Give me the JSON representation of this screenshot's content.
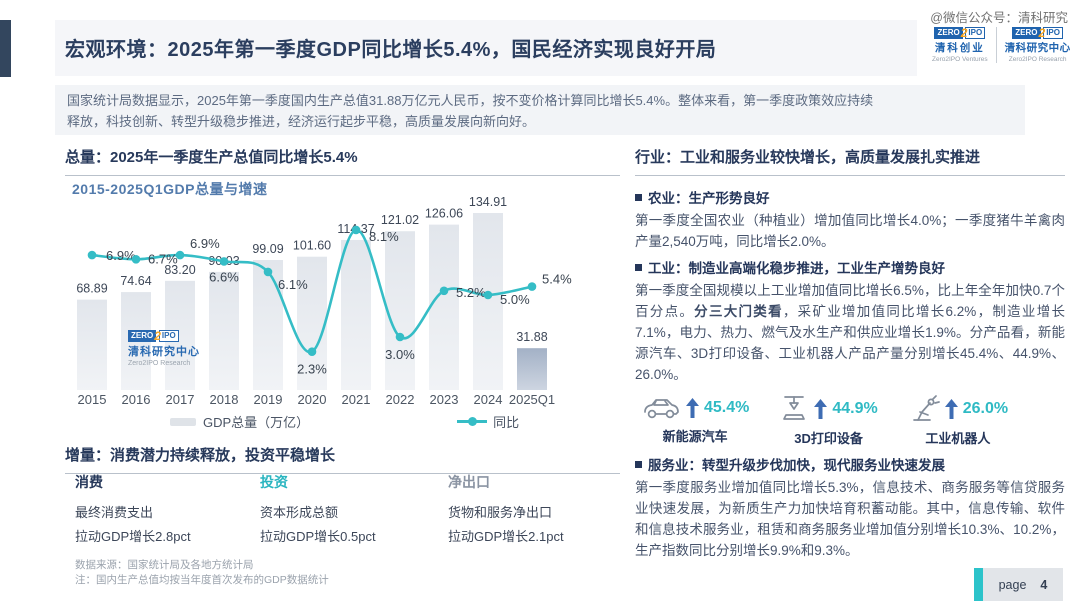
{
  "brand": {
    "zero": "ZERO",
    "two": "2",
    "ipo": "IPO"
  },
  "watermark": "@微信公众号：清科研究",
  "header": {
    "title": "宏观环境：2025年第一季度GDP同比增长5.4%，国民经济实现良好开局",
    "logos": [
      {
        "cn": "清科创业",
        "en": "Zero2IPO Ventures"
      },
      {
        "cn": "清科研究中心",
        "en": "Zero2IPO Research"
      }
    ]
  },
  "summary": "国家统计局数据显示，2025年第一季度国内生产总值31.88万亿元人民币，按不变价格计算同比增长5.4%。整体来看，第一季度政策效应持续释放，科技创新、转型升级稳步推进，经济运行起步平稳，高质量发展向新向好。",
  "left": {
    "total_header": "总量：2025年一季度生产总值同比增长5.4%",
    "growth_header": "增量：消费潜力持续释放，投资平稳增长",
    "drivers": [
      {
        "name": "消费",
        "line1": "最终消费支出",
        "line2": "拉动GDP增长2.8pct",
        "color": "#27395b"
      },
      {
        "name": "投资",
        "line1": "资本形成总额",
        "line2": "拉动GDP增长0.5pct",
        "color": "#2ab5c0"
      },
      {
        "name": "净出口",
        "line1": "货物和服务净出口",
        "line2": "拉动GDP增长2.1pct",
        "color": "#8b94a3"
      }
    ],
    "source": "数据来源：国家统计局及各地方统计局",
    "note": "注：国内生产总值均按当年度首次发布的GDP数据统计"
  },
  "chart_data": {
    "type": "bar+line",
    "title": "2015-2025Q1GDP总量与增速",
    "categories": [
      "2015",
      "2016",
      "2017",
      "2018",
      "2019",
      "2020",
      "2021",
      "2022",
      "2023",
      "2024",
      "2025Q1"
    ],
    "series": [
      {
        "name": "GDP总量（万亿）",
        "type": "bar",
        "unit": "万亿",
        "values": [
          68.89,
          74.64,
          83.2,
          90.03,
          99.09,
          101.6,
          114.37,
          121.02,
          126.06,
          134.91,
          31.88
        ]
      },
      {
        "name": "同比",
        "type": "line",
        "unit": "%",
        "values": [
          6.9,
          6.7,
          6.9,
          6.6,
          6.1,
          2.3,
          8.1,
          3.0,
          5.2,
          5.0,
          5.4
        ]
      }
    ],
    "ylim_bar": [
      0,
      140
    ],
    "ylim_line": [
      0,
      9.8
    ],
    "grid": false,
    "legend_position": "bottom",
    "bar_color": "#e2e6ec",
    "last_bar_color": "#a3b1c6",
    "line_color": "#35bdc6",
    "watermark": {
      "cn": "清科研究中心",
      "en": "Zero2IPO Research"
    }
  },
  "right": {
    "header": "行业：工业和服务业较快增长，高质量发展扎实推进",
    "agri_head": "农业：生产形势良好",
    "agri_body": "第一季度全国农业（种植业）增加值同比增长4.0%；一季度猪牛羊禽肉产量2,540万吨，同比增长2.0%。",
    "industry_head": "工业：制造业高端化稳步推进，工业生产增势良好",
    "industry_body_pre": "第一季度全国规模以上工业增加值同比增长6.5%，比上年全年加快0.7个百分点。",
    "industry_body_bold": "分三大门类看",
    "industry_body_post": "，采矿业增加值同比增长6.2%，制造业增长7.1%，电力、热力、燃气及水生产和供应业增长1.9%。分产品看，新能源汽车、3D打印设备、工业机器人产品产量分别增长45.4%、44.9%、26.0%。",
    "stats": [
      {
        "icon": "ev-car-icon",
        "value": "45.4%",
        "label": "新能源汽车"
      },
      {
        "icon": "3d-printer-icon",
        "value": "44.9%",
        "label": "3D打印设备"
      },
      {
        "icon": "robot-arm-icon",
        "value": "26.0%",
        "label": "工业机器人"
      }
    ],
    "service_head": "服务业：转型升级步伐加快，现代服务业快速发展",
    "service_body": "第一季度服务业增加值同比增长5.3%，信息技术、商务服务等信贷服务业快速发展，为新质生产力加快培育积蓄动能。其中，信息传输、软件和信息技术服务业，租赁和商务服务业增加值分别增长10.3%、10.2%，生产指数同比分别增长9.9%和9.3%。"
  },
  "footer": {
    "page_label": "page",
    "page_number": "4"
  }
}
